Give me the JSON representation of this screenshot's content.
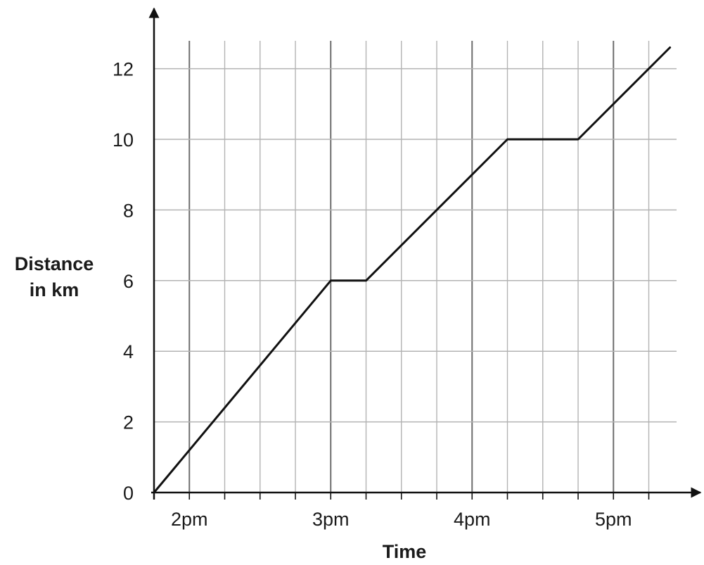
{
  "chart_data": {
    "type": "line",
    "xlabel": "Time",
    "ylabel_lines": [
      "Distance",
      "in km"
    ],
    "x_unit": "hours from 2pm",
    "xlim": [
      -0.25,
      3.45
    ],
    "ylim": [
      0,
      12.6
    ],
    "x_ticks": [
      {
        "value": 0,
        "label": "2pm"
      },
      {
        "value": 1,
        "label": "3pm"
      },
      {
        "value": 2,
        "label": "4pm"
      },
      {
        "value": 3,
        "label": "5pm"
      }
    ],
    "y_ticks": [
      0,
      2,
      4,
      6,
      8,
      10,
      12
    ],
    "minor_x_step": 0.25,
    "grid": true,
    "series": [
      {
        "points": [
          {
            "x": -0.25,
            "y": 0
          },
          {
            "x": 1.0,
            "y": 6
          },
          {
            "x": 1.25,
            "y": 6
          },
          {
            "x": 2.25,
            "y": 10
          },
          {
            "x": 2.75,
            "y": 10
          },
          {
            "x": 3.4,
            "y": 12.6
          }
        ],
        "color": "#111111"
      }
    ],
    "colors": {
      "major_grid": "#6e6e6e",
      "minor_grid": "#b3b3b3",
      "axis": "#111111"
    }
  }
}
